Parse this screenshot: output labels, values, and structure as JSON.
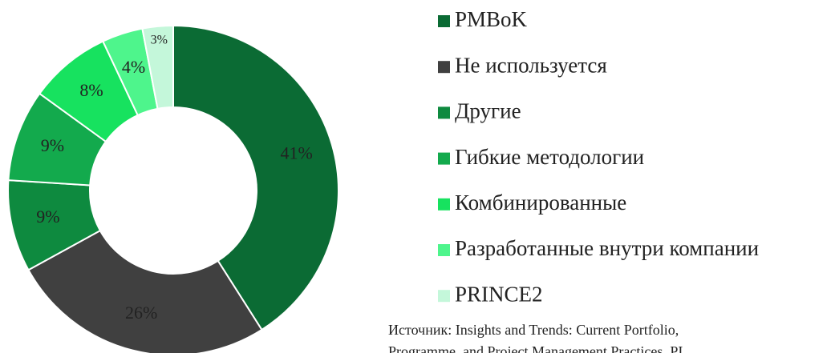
{
  "chart_data": {
    "type": "donut",
    "categories": [
      "PMBoK",
      "Не используется",
      "Другие",
      "Гибкие методологии",
      "Комбинированные",
      "Разработанные внутри компании",
      "PRINCE2"
    ],
    "values": [
      41,
      26,
      9,
      9,
      8,
      4,
      3
    ],
    "value_labels": [
      "41%",
      "26%",
      "9%",
      "9%",
      "8%",
      "4%",
      "3%"
    ],
    "colors": [
      "#0b6b34",
      "#404040",
      "#0e8a3f",
      "#13aa4d",
      "#17e25f",
      "#4ef58c",
      "#c4f7da"
    ],
    "legend": "right",
    "note": [
      "Источник: Insights and Trends: Current Portfolio,",
      "Programme, and Project Management Practices. PI"
    ]
  }
}
